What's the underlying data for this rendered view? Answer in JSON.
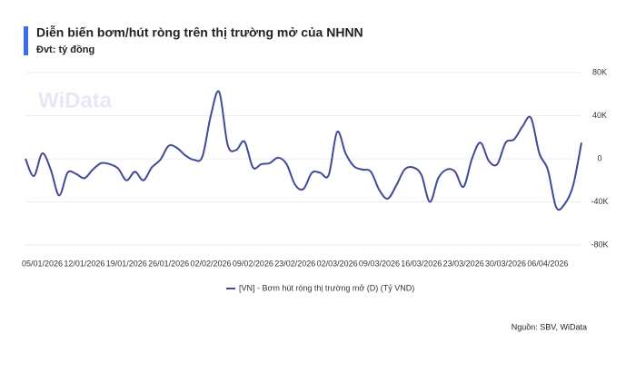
{
  "chart_data": {
    "type": "line",
    "title": "Diễn biến bơm/hút ròng trên thị trường mở của NHNN",
    "subtitle": "Đvt: tỷ đồng",
    "watermark": "WiData",
    "source": "Nguồn: SBV, WiData",
    "categories": [
      null,
      null,
      "05/01/2026",
      null,
      null,
      null,
      null,
      "12/01/2026",
      null,
      null,
      null,
      null,
      "19/01/2026",
      null,
      null,
      null,
      null,
      "26/01/2026",
      null,
      null,
      null,
      null,
      "02/02/2026",
      null,
      null,
      null,
      null,
      "09/02/2026",
      null,
      null,
      null,
      null,
      "23/02/2026",
      null,
      null,
      null,
      null,
      "02/03/2026",
      null,
      null,
      null,
      null,
      "09/03/2026",
      null,
      null,
      null,
      null,
      "16/03/2026",
      null,
      null,
      null,
      null,
      "23/03/2026",
      null,
      null,
      null,
      null,
      "30/03/2026",
      null,
      null,
      null,
      null,
      "06/04/2026",
      null,
      null,
      null,
      null
    ],
    "series": [
      {
        "name": "[VN] - Bơm hút ròng thị trường mở (D) (Tỷ VND)",
        "color": "#414a98",
        "values": [
          0,
          -16000,
          5000,
          -10000,
          -34000,
          -13000,
          -14000,
          -18000,
          -10000,
          -4000,
          -5000,
          -9000,
          -20000,
          -12000,
          -20000,
          -8000,
          -1000,
          12000,
          10000,
          3000,
          -1000,
          2000,
          40000,
          62000,
          13000,
          8000,
          16000,
          -8000,
          -5000,
          -4000,
          1000,
          -5000,
          -24000,
          -28000,
          -13000,
          -13000,
          -15000,
          25000,
          5000,
          -7000,
          -10000,
          -12000,
          -29000,
          -37000,
          -25000,
          -10000,
          -8000,
          -15000,
          -40000,
          -18000,
          -10000,
          -12000,
          -26000,
          0,
          15000,
          -2000,
          -5000,
          15000,
          18000,
          30000,
          38000,
          5000,
          -10000,
          -45000,
          -42000,
          -25000,
          15000
        ]
      }
    ],
    "ylim": [
      -80000,
      80000
    ],
    "yticks": [
      {
        "value": 80000,
        "label": "80K"
      },
      {
        "value": 40000,
        "label": "40K"
      },
      {
        "value": 0,
        "label": "0"
      },
      {
        "value": -40000,
        "label": "-40K"
      },
      {
        "value": -80000,
        "label": "-80K"
      }
    ],
    "grid": true,
    "legend": "bottom"
  }
}
